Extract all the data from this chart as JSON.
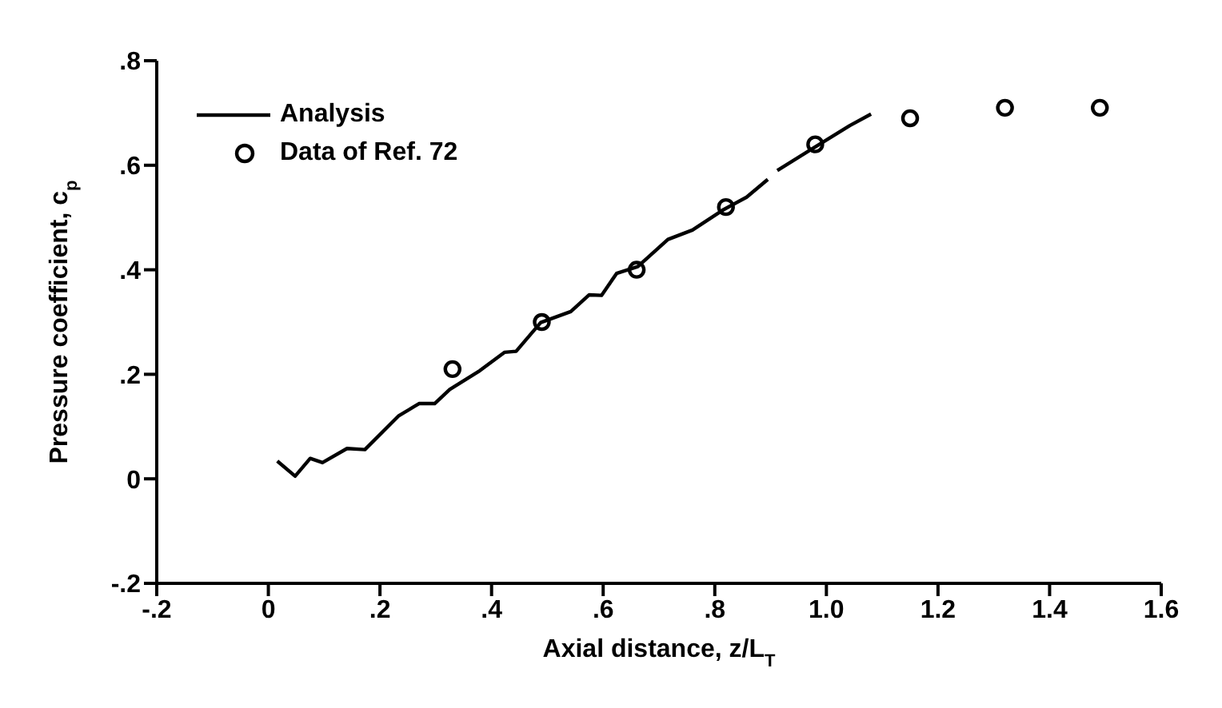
{
  "chart_data": {
    "type": "line",
    "xlabel": "Axial distance, z/L$_{T}$",
    "ylabel": "Pressure coefficient, c$_{p}$",
    "xlim": [
      -0.2,
      1.6
    ],
    "ylim": [
      -0.2,
      0.8
    ],
    "xticks": [
      {
        "value": -0.2,
        "label": "-.2"
      },
      0,
      {
        "value": 0.2,
        "label": ".2"
      },
      {
        "value": 0.4,
        "label": ".4"
      },
      {
        "value": 0.6,
        "label": ".6"
      },
      {
        "value": 0.8,
        "label": ".8"
      },
      {
        "value": 1.0,
        "label": "1.0"
      },
      {
        "value": 1.2,
        "label": "1.2"
      },
      {
        "value": 1.4,
        "label": "1.4"
      },
      {
        "value": 1.6,
        "label": "1.6"
      }
    ],
    "yticks": [
      {
        "value": -0.2,
        "label": "-.2"
      },
      0,
      {
        "value": 0.2,
        "label": ".2"
      },
      {
        "value": 0.4,
        "label": ".4"
      },
      {
        "value": 0.6,
        "label": ".6"
      },
      {
        "value": 0.8,
        "label": ".8"
      }
    ],
    "grid": false,
    "legend": "top left",
    "series": [
      {
        "name": "Analysis",
        "type": "line",
        "color": "#000000",
        "marker": "none",
        "line_style": "solid",
        "x": [
          0.016,
          0.048,
          0.075,
          0.097,
          0.141,
          0.173,
          0.233,
          0.27,
          0.298,
          0.325,
          0.379,
          0.423,
          0.444,
          0.488,
          0.542,
          0.575,
          0.597,
          0.624,
          0.662,
          0.716,
          0.76,
          0.814,
          0.857,
          0.895,
          0.903,
          0.912,
          0.977,
          1.042,
          1.08
        ],
        "values": [
          0.034,
          0.005,
          0.039,
          0.031,
          0.058,
          0.056,
          0.12,
          0.144,
          0.144,
          0.171,
          0.207,
          0.242,
          0.244,
          0.299,
          0.32,
          0.352,
          0.351,
          0.393,
          0.406,
          0.458,
          0.476,
          0.514,
          0.539,
          0.573,
          null,
          0.59,
          0.633,
          0.676,
          0.698
        ]
      },
      {
        "name": "Data of Ref. 72",
        "type": "scatter",
        "color": "#000000",
        "marker": "circle",
        "x": [
          0.33,
          0.49,
          0.66,
          0.82,
          0.98,
          1.15,
          1.32,
          1.49
        ],
        "values": [
          0.21,
          0.3,
          0.4,
          0.52,
          0.64,
          0.69,
          0.71,
          0.71
        ]
      }
    ]
  }
}
